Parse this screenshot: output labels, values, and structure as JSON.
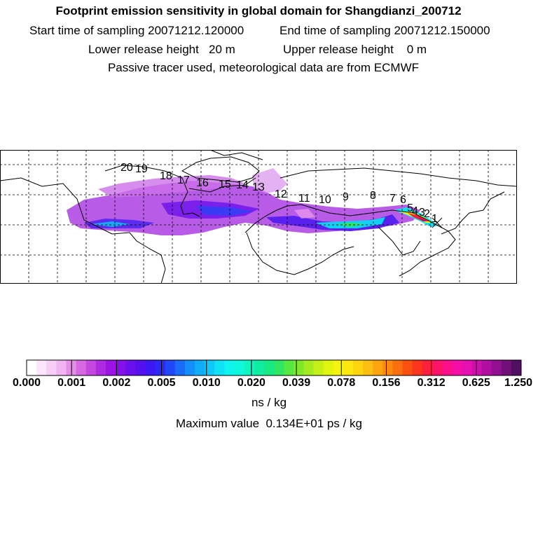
{
  "header": {
    "title": "Footprint emission sensitivity in global domain for Shangdianzi_200712",
    "start_label": "Start time of sampling 20071212.120000",
    "end_label": "End time of sampling 20071212.150000",
    "lower_label": "Lower release height   20 m",
    "upper_label": "Upper release height    0 m",
    "note": "Passive tracer used, meteorological data are from ECMWF"
  },
  "colorbar": {
    "ticks": [
      "0.000",
      "0.001",
      "0.002",
      "0.005",
      "0.010",
      "0.020",
      "0.039",
      "0.078",
      "0.156",
      "0.312",
      "0.625",
      "1.250"
    ],
    "colors": [
      "#ffffff",
      "#fbe6fb",
      "#f6cef6",
      "#f0b4f0",
      "#e48ee8",
      "#d668e2",
      "#c448e0",
      "#b02ae2",
      "#9a14e6",
      "#8410ea",
      "#6a10ec",
      "#5410f0",
      "#3c18f4",
      "#2c28f6",
      "#2048f8",
      "#1a6cf8",
      "#148ef8",
      "#10acf8",
      "#10c8f8",
      "#10e2f6",
      "#10f4ee",
      "#10f8da",
      "#10f4be",
      "#10eca0",
      "#18e880",
      "#30e660",
      "#58e640",
      "#80e828",
      "#a4ec20",
      "#c4f018",
      "#e0f410",
      "#f4f410",
      "#fce810",
      "#fcd410",
      "#fcbe10",
      "#fca410",
      "#fc8a10",
      "#fc6e10",
      "#fc5010",
      "#fc3420",
      "#fc2040",
      "#fc1468",
      "#fc108c",
      "#f410a8",
      "#e410b0",
      "#cc10ac",
      "#b010a0",
      "#901090",
      "#701078",
      "#501060"
    ],
    "unit": "ns / kg",
    "max_value_label": "Maximum value  0.134E+01 ps / kg"
  },
  "map": {
    "trajectory_labels": [
      "20",
      "19",
      "18",
      "17",
      "16",
      "15",
      "14",
      "13",
      "12",
      "11",
      "10",
      "9",
      "8",
      "7",
      "6",
      "5",
      "4",
      "3",
      "2",
      "1"
    ],
    "extent": {
      "lon": [
        -180,
        180
      ],
      "lat": [
        -10,
        80
      ]
    },
    "receptor": "Shangdianzi"
  }
}
